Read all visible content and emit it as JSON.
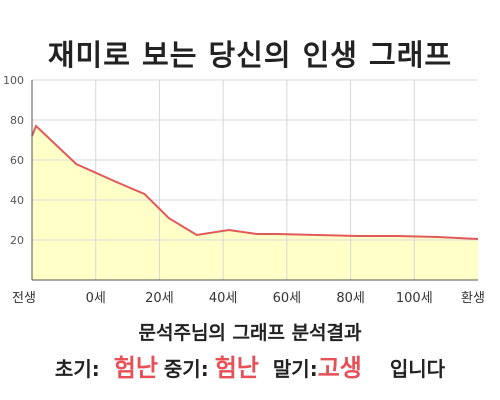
{
  "title": "재미로 보는 당신의 인생 그래프",
  "summary": "문석주님의 그래프 분석결과",
  "result": {
    "early_label": "초기:",
    "early_value": "험난",
    "middle_label": "중기:",
    "middle_value": "험난",
    "late_label": "말기:",
    "late_value": "고생",
    "suffix": "입니다"
  },
  "colors": {
    "fill": "#ffffc8",
    "line": "#e05a5a",
    "value_text": "#e84f57"
  },
  "chart_data": {
    "type": "area",
    "title": "재미로 보는 당신의 인생 그래프",
    "xlabel": "",
    "ylabel": "",
    "x": [
      -1,
      0,
      10,
      20,
      27,
      33,
      40,
      48,
      55,
      60,
      70,
      80,
      90,
      100,
      110
    ],
    "values": [
      72,
      77,
      58,
      49,
      43,
      31,
      22.5,
      25,
      23,
      23,
      22.5,
      22,
      22,
      21.5,
      20.5
    ],
    "x_tick_labels": [
      "전생",
      "0세",
      "20세",
      "40세",
      "60세",
      "80세",
      "100세",
      "환생"
    ],
    "y_ticks": [
      20,
      40,
      60,
      80,
      100
    ],
    "ylim": [
      0,
      100
    ],
    "grid": true
  }
}
